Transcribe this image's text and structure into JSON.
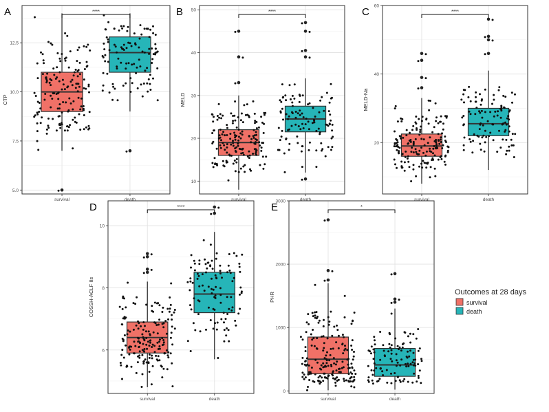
{
  "colors": {
    "survival": "#F07167",
    "death": "#26B5B8",
    "grid": "#e6e6e6",
    "frame": "#333333"
  },
  "legend": {
    "title": "Outcomes at 28 days",
    "items": [
      {
        "label": "survival",
        "color": "#F07167"
      },
      {
        "label": "death",
        "color": "#26B5B8"
      }
    ]
  },
  "chart_data": [
    {
      "id": "A",
      "type": "box",
      "ylabel": "CTP",
      "ylim": [
        4.8,
        14.4
      ],
      "yticks": [
        5.0,
        7.5,
        10.0,
        12.5
      ],
      "ytick_labels": [
        "5.0",
        "7.5",
        "10.0",
        "12.5"
      ],
      "categories": [
        "survival",
        "death"
      ],
      "significance": "****",
      "series": [
        {
          "name": "survival",
          "n": 160,
          "min": 7.0,
          "q1": 9.0,
          "median": 10.0,
          "q3": 11.0,
          "max": 14.0,
          "outliers": [
            5.0
          ]
        },
        {
          "name": "death",
          "n": 110,
          "min": 9.0,
          "q1": 11.0,
          "median": 12.0,
          "q3": 12.8,
          "max": 14.0,
          "outliers": [
            7.0
          ]
        }
      ]
    },
    {
      "id": "B",
      "type": "box",
      "ylabel": "MELD",
      "ylim": [
        7,
        51
      ],
      "yticks": [
        10,
        20,
        30,
        40,
        50
      ],
      "ytick_labels": [
        "10",
        "20",
        "30",
        "40",
        "50"
      ],
      "categories": [
        "survival",
        "death"
      ],
      "significance": "****",
      "series": [
        {
          "name": "survival",
          "n": 170,
          "min": 8,
          "q1": 16,
          "median": 19,
          "q3": 22,
          "max": 30,
          "outliers": [
            33,
            39,
            45
          ]
        },
        {
          "name": "death",
          "n": 110,
          "min": 12,
          "q1": 21.5,
          "median": 24.5,
          "q3": 27.5,
          "max": 34,
          "outliers": [
            10.5,
            39,
            40.5,
            45,
            47
          ]
        }
      ]
    },
    {
      "id": "C",
      "type": "box",
      "ylabel": "MELD-Na",
      "ylim": [
        5,
        60
      ],
      "yticks": [
        20,
        40,
        60
      ],
      "ytick_labels": [
        "20",
        "40",
        "60"
      ],
      "categories": [
        "survival",
        "death"
      ],
      "significance": "****",
      "series": [
        {
          "name": "survival",
          "n": 170,
          "min": 8,
          "q1": 16,
          "median": 19,
          "q3": 22.5,
          "max": 33,
          "outliers": [
            36,
            39,
            44,
            46
          ]
        },
        {
          "name": "death",
          "n": 110,
          "min": 12,
          "q1": 22,
          "median": 25.5,
          "q3": 30,
          "max": 41,
          "outliers": [
            46,
            50,
            51,
            56
          ]
        }
      ]
    },
    {
      "id": "D",
      "type": "box",
      "ylabel": "COSSH-ACLF IIs",
      "ylim": [
        4.6,
        10.8
      ],
      "yticks": [
        6,
        8,
        10
      ],
      "ytick_labels": [
        "6",
        "8",
        "10"
      ],
      "categories": [
        "survival",
        "death"
      ],
      "significance": "****",
      "series": [
        {
          "name": "survival",
          "n": 180,
          "min": 4.8,
          "q1": 5.9,
          "median": 6.4,
          "q3": 6.9,
          "max": 8.2,
          "outliers": [
            8.5,
            8.6,
            9.0,
            9.1
          ]
        },
        {
          "name": "death",
          "n": 110,
          "min": 5.7,
          "q1": 7.2,
          "median": 7.8,
          "q3": 8.5,
          "max": 9.8,
          "outliers": [
            10.4,
            10.6
          ]
        }
      ]
    },
    {
      "id": "E",
      "type": "box",
      "ylabel": "PHR",
      "ylim": [
        -40,
        3000
      ],
      "yticks": [
        0,
        1000,
        2000,
        3000
      ],
      "ytick_labels": [
        "0",
        "1000",
        "2000",
        "3000"
      ],
      "categories": [
        "survival",
        "death"
      ],
      "significance": "*",
      "series": [
        {
          "name": "survival",
          "n": 190,
          "min": 10,
          "q1": 270,
          "median": 500,
          "q3": 850,
          "max": 1700,
          "outliers": [
            1750,
            1900,
            2700
          ]
        },
        {
          "name": "death",
          "n": 110,
          "min": 20,
          "q1": 230,
          "median": 410,
          "q3": 670,
          "max": 1300,
          "outliers": [
            1400,
            1450,
            1850
          ]
        }
      ]
    }
  ]
}
